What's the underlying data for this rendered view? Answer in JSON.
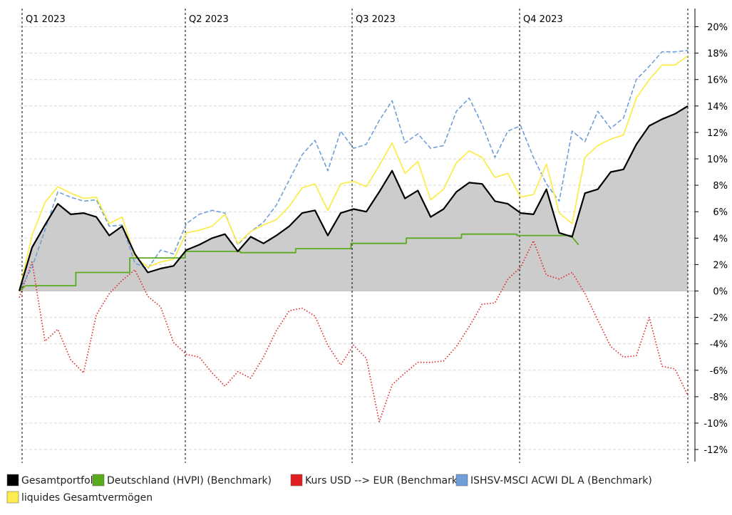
{
  "chart_data": {
    "type": "line",
    "title": "",
    "xlabel": "",
    "ylabel": "",
    "y_axis_side": "right",
    "ylim": [
      -13,
      21
    ],
    "y_ticks": [
      20,
      18,
      16,
      14,
      12,
      10,
      8,
      6,
      4,
      2,
      0,
      -2,
      -4,
      -6,
      -8,
      -10,
      -12
    ],
    "y_tick_labels": [
      "20%",
      "18%",
      "16%",
      "14%",
      "12%",
      "10%",
      "8%",
      "6%",
      "4%",
      "2%",
      "0%",
      "-2%",
      "-4%",
      "-6%",
      "-8%",
      "-10%",
      "-12%"
    ],
    "quarters": [
      "Q1 2023",
      "Q2 2023",
      "Q3 2023",
      "Q4 2023"
    ],
    "x_unit": "week of 2023",
    "xlim": [
      0,
      52
    ],
    "grid": true,
    "legend_position": "bottom",
    "series": [
      {
        "name": "Gesamtportfolio",
        "color": "#000000",
        "style": "solid-area",
        "fill": "#cccccc",
        "x": [
          0,
          1,
          2,
          3,
          4,
          5,
          6,
          7,
          8,
          9,
          10,
          11,
          12,
          13,
          14,
          15,
          16,
          17,
          18,
          19,
          20,
          21,
          22,
          23,
          24,
          25,
          26,
          27,
          28,
          29,
          30,
          31,
          32,
          33,
          34,
          35,
          36,
          37,
          38,
          39,
          40,
          41,
          42,
          43,
          44,
          45,
          46,
          47,
          48,
          49,
          50,
          51,
          52
        ],
        "values": [
          0.0,
          3.3,
          5.0,
          6.6,
          5.8,
          5.9,
          5.6,
          4.2,
          4.9,
          2.8,
          1.4,
          1.7,
          1.9,
          3.1,
          3.5,
          4.0,
          4.3,
          3.0,
          4.1,
          3.6,
          4.2,
          4.9,
          5.9,
          6.1,
          4.2,
          5.9,
          6.2,
          6.0,
          7.5,
          9.1,
          7.0,
          7.6,
          5.6,
          6.2,
          7.5,
          8.2,
          8.1,
          6.8,
          6.6,
          5.9,
          5.8,
          7.7,
          4.4,
          4.1,
          7.4,
          7.7,
          9.0,
          9.2,
          11.1,
          12.5,
          13.0,
          13.4,
          14.0
        ]
      },
      {
        "name": "Deutschland (HVPI) (Benchmark)",
        "color": "#5aaa1e",
        "style": "solid",
        "x": [
          0,
          0.5,
          4.4,
          4.4,
          8.6,
          8.6,
          12.9,
          12.9,
          17.2,
          17.2,
          21.5,
          21.5,
          25.8,
          25.8,
          30.1,
          30.1,
          34.4,
          34.4,
          38.7,
          38.7,
          42.9,
          43.5
        ],
        "values": [
          0.0,
          0.4,
          0.4,
          1.4,
          1.4,
          2.5,
          2.5,
          3.0,
          3.0,
          2.9,
          2.9,
          3.2,
          3.2,
          3.6,
          3.6,
          4.0,
          4.0,
          4.3,
          4.3,
          4.2,
          4.2,
          3.5
        ]
      },
      {
        "name": "Kurs USD --> EUR (Benchmark)",
        "color": "#e02020",
        "style": "dotted",
        "x": [
          0,
          1,
          2,
          3,
          4,
          5,
          6,
          7,
          8,
          9,
          10,
          11,
          12,
          13,
          14,
          15,
          16,
          17,
          18,
          19,
          20,
          21,
          22,
          23,
          24,
          25,
          26,
          27,
          28,
          29,
          30,
          31,
          32,
          33,
          34,
          35,
          36,
          37,
          38,
          39,
          40,
          41,
          42,
          43,
          44,
          45,
          46,
          47,
          48,
          49,
          50,
          51,
          52
        ],
        "values": [
          -0.5,
          2.2,
          -3.8,
          -2.9,
          -5.2,
          -6.2,
          -1.8,
          -0.2,
          0.8,
          1.6,
          -0.4,
          -1.2,
          -3.9,
          -4.8,
          -5.0,
          -6.2,
          -7.2,
          -6.1,
          -6.6,
          -5.0,
          -3.0,
          -1.5,
          -1.3,
          -1.9,
          -4.1,
          -5.6,
          -4.1,
          -5.1,
          -9.9,
          -7.1,
          -6.2,
          -5.4,
          -5.4,
          -5.3,
          -4.2,
          -2.7,
          -1.0,
          -0.9,
          0.9,
          1.8,
          3.8,
          1.2,
          0.9,
          1.4,
          -0.2,
          -2.2,
          -4.2,
          -5.0,
          -4.9,
          -2.0,
          -5.7,
          -5.9,
          -7.9
        ]
      },
      {
        "name": "ISHSV-MSCI ACWI DL A (Benchmark)",
        "color": "#6f9fd8",
        "style": "dashed",
        "x": [
          0,
          1,
          2,
          3,
          4,
          5,
          6,
          7,
          8,
          9,
          10,
          11,
          12,
          13,
          14,
          15,
          16,
          17,
          18,
          19,
          20,
          21,
          22,
          23,
          24,
          25,
          26,
          27,
          28,
          29,
          30,
          31,
          32,
          33,
          34,
          35,
          36,
          37,
          38,
          39,
          40,
          41,
          42,
          43,
          44,
          45,
          46,
          47,
          48,
          49,
          50,
          51,
          52
        ],
        "values": [
          0.0,
          1.8,
          4.6,
          7.5,
          7.1,
          6.8,
          6.9,
          4.9,
          5.0,
          2.1,
          1.7,
          3.1,
          2.8,
          5.1,
          5.8,
          6.1,
          5.9,
          3.5,
          4.5,
          5.2,
          6.5,
          8.4,
          10.3,
          11.4,
          9.1,
          12.1,
          10.8,
          11.1,
          12.9,
          14.4,
          11.2,
          11.9,
          10.8,
          11.0,
          13.6,
          14.6,
          12.6,
          10.1,
          12.1,
          12.5,
          10.1,
          8.1,
          6.8,
          12.1,
          11.3,
          13.6,
          12.3,
          13.1,
          16.0,
          17.0,
          18.1,
          18.1,
          18.2
        ]
      },
      {
        "name": "liquides Gesamtvermögen",
        "color": "#fcec50",
        "style": "solid",
        "x": [
          0,
          1,
          2,
          3,
          4,
          5,
          6,
          7,
          8,
          9,
          10,
          11,
          12,
          13,
          14,
          15,
          16,
          17,
          18,
          19,
          20,
          21,
          22,
          23,
          24,
          25,
          26,
          27,
          28,
          29,
          30,
          31,
          32,
          33,
          34,
          35,
          36,
          37,
          38,
          39,
          40,
          41,
          42,
          43,
          44,
          45,
          46,
          47,
          48,
          49,
          50,
          51,
          52
        ],
        "values": [
          0.0,
          4.2,
          6.7,
          7.9,
          7.4,
          7.0,
          7.1,
          5.1,
          5.6,
          2.6,
          1.8,
          2.2,
          2.4,
          4.4,
          4.6,
          4.9,
          5.8,
          3.6,
          4.5,
          5.0,
          5.4,
          6.4,
          7.8,
          8.1,
          6.1,
          8.1,
          8.3,
          7.9,
          9.5,
          11.2,
          8.9,
          9.8,
          6.9,
          7.7,
          9.7,
          10.6,
          10.1,
          8.6,
          8.9,
          7.1,
          7.3,
          9.6,
          5.9,
          5.1,
          10.1,
          11.0,
          11.5,
          11.8,
          14.6,
          16.0,
          17.1,
          17.1,
          17.8
        ]
      }
    ]
  }
}
